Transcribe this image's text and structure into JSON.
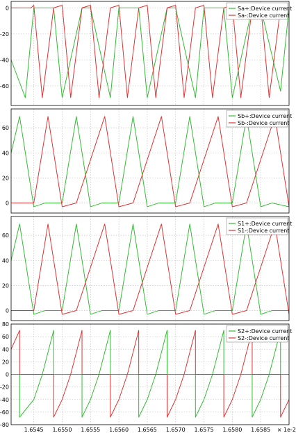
{
  "chart_data": [
    {
      "type": "line",
      "xlim": [
        1.6541,
        1.659
      ],
      "ylim": [
        -75,
        5
      ],
      "yticks": [
        0,
        -20,
        -40,
        -60
      ],
      "ytick_labels": [
        "0",
        "-20",
        "-40",
        "-60"
      ],
      "grid": true,
      "legend_position": "top-right",
      "series": [
        {
          "name": "Sa+:Device current",
          "color": "#33bb33",
          "x": [
            1.6541,
            1.65435,
            1.6545,
            1.65485,
            1.655,
            1.65535,
            1.6555,
            1.65585,
            1.656,
            1.65635,
            1.6565,
            1.65685,
            1.657,
            1.65735,
            1.6575,
            1.65785,
            1.658,
            1.65835,
            1.6585,
            1.65885,
            1.659
          ],
          "y": [
            -40,
            -69,
            0,
            0,
            -69,
            0,
            0,
            -69,
            0,
            0,
            -69,
            0,
            0,
            -69,
            0,
            0,
            -69,
            0,
            0,
            -64,
            0
          ]
        },
        {
          "name": "Sa-:Device current",
          "color": "#dd3333",
          "x": [
            1.6541,
            1.65445,
            1.6545,
            1.65465,
            1.65485,
            1.655,
            1.65515,
            1.65535,
            1.6555,
            1.65565,
            1.65585,
            1.656,
            1.65615,
            1.65635,
            1.6565,
            1.65665,
            1.65685,
            1.657,
            1.65715,
            1.65735,
            1.6575,
            1.65765,
            1.65785,
            1.658,
            1.65815,
            1.65835,
            1.6585,
            1.65865,
            1.65885
          ],
          "y": [
            0,
            0,
            2,
            -69,
            0,
            2,
            -69,
            0,
            2,
            -69,
            0,
            2,
            -69,
            0,
            2,
            -69,
            0,
            2,
            -69,
            0,
            2,
            -69,
            0,
            2,
            -69,
            0,
            2,
            -69,
            0
          ]
        }
      ]
    },
    {
      "type": "line",
      "xlim": [
        1.6541,
        1.659
      ],
      "ylim": [
        -8,
        75
      ],
      "yticks": [
        0,
        20,
        40,
        60
      ],
      "ytick_labels": [
        "0",
        "20",
        "40",
        "60"
      ],
      "grid": true,
      "legend_position": "top-right",
      "series": [
        {
          "name": "Sb+:Device current",
          "color": "#33bb33",
          "x": [
            1.6541,
            1.65425,
            1.6545,
            1.6547,
            1.655,
            1.65525,
            1.6555,
            1.6557,
            1.656,
            1.65625,
            1.6565,
            1.6567,
            1.657,
            1.65725,
            1.6575,
            1.6577,
            1.658,
            1.65825,
            1.6585,
            1.6587,
            1.659
          ],
          "y": [
            40,
            69,
            -3,
            0,
            0,
            69,
            -3,
            0,
            0,
            69,
            -3,
            0,
            0,
            69,
            -3,
            0,
            0,
            69,
            -3,
            0,
            -3
          ]
        },
        {
          "name": "Sb-:Device current",
          "color": "#dd3333",
          "x": [
            1.6541,
            1.6545,
            1.65475,
            1.655,
            1.65525,
            1.65575,
            1.656,
            1.65625,
            1.65675,
            1.657,
            1.65725,
            1.65775,
            1.658,
            1.65825,
            1.65875,
            1.659
          ],
          "y": [
            0,
            0,
            69,
            -3,
            0,
            69,
            -3,
            0,
            69,
            -3,
            0,
            69,
            -3,
            0,
            69,
            -3
          ]
        }
      ]
    },
    {
      "type": "line",
      "xlim": [
        1.6541,
        1.659
      ],
      "ylim": [
        -8,
        75
      ],
      "yticks": [
        0,
        20,
        40,
        60
      ],
      "ytick_labels": [
        "0",
        "20",
        "40",
        "60"
      ],
      "grid": true,
      "legend_position": "top-right",
      "series": [
        {
          "name": "S1+:Device current",
          "color": "#33bb33",
          "x": [
            1.6541,
            1.65425,
            1.6545,
            1.6547,
            1.655,
            1.65525,
            1.6555,
            1.6557,
            1.656,
            1.65625,
            1.6565,
            1.6567,
            1.657,
            1.65725,
            1.6575,
            1.6577,
            1.658,
            1.65825,
            1.6585,
            1.6587,
            1.659
          ],
          "y": [
            40,
            69,
            -3,
            0,
            0,
            69,
            -3,
            0,
            0,
            69,
            -3,
            0,
            0,
            69,
            -3,
            0,
            0,
            69,
            -3,
            0,
            0
          ]
        },
        {
          "name": "S1-:Device current",
          "color": "#dd3333",
          "x": [
            1.6541,
            1.6545,
            1.65475,
            1.655,
            1.65525,
            1.65575,
            1.656,
            1.65625,
            1.65675,
            1.657,
            1.65725,
            1.65775,
            1.658,
            1.65825,
            1.65875,
            1.659
          ],
          "y": [
            0,
            0,
            69,
            -3,
            0,
            69,
            -3,
            0,
            69,
            -3,
            0,
            69,
            -3,
            0,
            69,
            -3
          ]
        }
      ]
    },
    {
      "type": "line",
      "xlim": [
        1.6541,
        1.659
      ],
      "ylim": [
        -80,
        80
      ],
      "yticks": [
        80,
        60,
        40,
        20,
        0,
        -20,
        -40,
        -60,
        -80
      ],
      "ytick_labels": [
        "80",
        "60",
        "40",
        "20",
        "0",
        "-20",
        "-40",
        "-60",
        "-80"
      ],
      "xticks": [
        1.6545,
        1.655,
        1.6555,
        1.656,
        1.6565,
        1.657,
        1.6575,
        1.658,
        1.6585
      ],
      "xtick_labels": [
        "1.6545",
        "1.6550",
        "1.6555",
        "1.6560",
        "1.6565",
        "1.6570",
        "1.6575",
        "1.6580",
        "1.6585"
      ],
      "x_offset_label": "× 1e-2",
      "grid": true,
      "legend_position": "top-right",
      "series": [
        {
          "name": "S2+:Device current",
          "color": "#33bb33",
          "x": [
            1.6541,
            1.65425,
            1.65425,
            1.6545,
            1.65465,
            1.65485,
            1.65485,
            1.655,
            1.65515,
            1.65535,
            1.65535,
            1.6555,
            1.65565,
            1.65585,
            1.65585,
            1.656,
            1.65615,
            1.65635,
            1.65635,
            1.6565,
            1.65665,
            1.65685,
            1.65685,
            1.657,
            1.65715,
            1.65735,
            1.65735,
            1.6575,
            1.65765,
            1.65785,
            1.65785,
            1.658,
            1.65815,
            1.65835,
            1.65835,
            1.6585,
            1.65865,
            1.65885,
            1.65885,
            1.659
          ],
          "y": [
            0,
            0,
            -68,
            -40,
            0,
            70,
            0,
            0,
            0,
            0,
            -68,
            -40,
            0,
            70,
            0,
            0,
            0,
            0,
            -68,
            -40,
            0,
            70,
            0,
            0,
            0,
            0,
            -68,
            -40,
            0,
            70,
            0,
            0,
            0,
            0,
            -68,
            -40,
            0,
            70,
            0,
            0
          ]
        },
        {
          "name": "S2-:Device current",
          "color": "#dd3333",
          "x": [
            1.6541,
            1.65425,
            1.65425,
            1.6545,
            1.65485,
            1.65485,
            1.655,
            1.65515,
            1.65535,
            1.65535,
            1.6555,
            1.65565,
            1.65585,
            1.65585,
            1.656,
            1.65615,
            1.65635,
            1.65635,
            1.6565,
            1.65665,
            1.65685,
            1.65685,
            1.657,
            1.65715,
            1.65735,
            1.65735,
            1.6575,
            1.65765,
            1.65785,
            1.65785,
            1.658,
            1.65815,
            1.65835,
            1.65835,
            1.6585,
            1.65865,
            1.65885,
            1.65885,
            1.659
          ],
          "y": [
            40,
            70,
            0,
            0,
            0,
            -68,
            -40,
            0,
            70,
            0,
            0,
            0,
            0,
            -68,
            -40,
            0,
            70,
            0,
            0,
            0,
            0,
            -68,
            -40,
            0,
            70,
            0,
            0,
            0,
            0,
            -68,
            -40,
            0,
            70,
            0,
            0,
            0,
            0,
            -68,
            -40
          ]
        }
      ]
    }
  ]
}
